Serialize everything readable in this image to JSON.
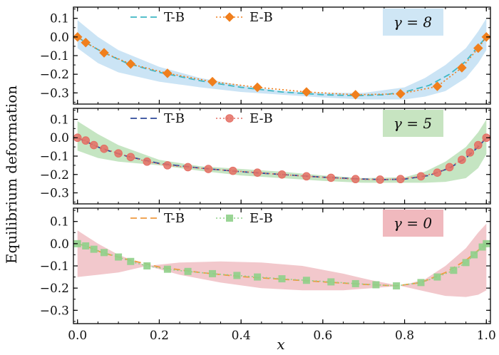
{
  "chart_data": [
    {
      "type": "line",
      "annotation": "γ = 8",
      "badge_color": "#cfe6f5",
      "band_color": "#a9d2ef",
      "tb_color": "#3fb7c4",
      "eb_color": "#f07f1d",
      "eb_marker": "diamond",
      "legend": [
        "T-B",
        "E-B"
      ],
      "ylabel": "",
      "ylim": [
        -0.36,
        0.16
      ],
      "yticks": [
        0.1,
        0.0,
        -0.1,
        -0.2,
        -0.3
      ],
      "ytick_labels": [
        "0.1",
        "0.0",
        "−0.1",
        "−0.2",
        "−0.3"
      ],
      "tb": {
        "x": [
          0,
          0.02,
          0.06,
          0.12,
          0.2,
          0.3,
          0.4,
          0.5,
          0.6,
          0.68,
          0.75,
          0.8,
          0.86,
          0.91,
          0.95,
          0.98,
          1.0
        ],
        "y": [
          0.0,
          -0.03,
          -0.08,
          -0.14,
          -0.19,
          -0.235,
          -0.27,
          -0.295,
          -0.31,
          -0.315,
          -0.31,
          -0.295,
          -0.26,
          -0.2,
          -0.13,
          -0.05,
          0.0
        ]
      },
      "eb_markers": {
        "x": [
          0.0,
          0.02,
          0.065,
          0.13,
          0.22,
          0.33,
          0.44,
          0.56,
          0.68,
          0.79,
          0.88,
          0.94,
          0.98,
          1.0
        ],
        "y": [
          0.0,
          -0.03,
          -0.085,
          -0.145,
          -0.195,
          -0.24,
          -0.27,
          -0.295,
          -0.31,
          -0.305,
          -0.265,
          -0.165,
          -0.06,
          0.0
        ]
      },
      "band": {
        "x": [
          0,
          0.05,
          0.1,
          0.2,
          0.3,
          0.4,
          0.5,
          0.6,
          0.7,
          0.8,
          0.85,
          0.9,
          0.95,
          0.98,
          1.0
        ],
        "upper": [
          0.09,
          0.0,
          -0.07,
          -0.16,
          -0.22,
          -0.26,
          -0.29,
          -0.3,
          -0.3,
          -0.27,
          -0.22,
          -0.15,
          -0.06,
          0.03,
          0.1
        ],
        "lower": [
          -0.06,
          -0.14,
          -0.19,
          -0.24,
          -0.27,
          -0.295,
          -0.31,
          -0.325,
          -0.335,
          -0.335,
          -0.32,
          -0.29,
          -0.22,
          -0.14,
          -0.07
        ]
      }
    },
    {
      "type": "line",
      "annotation": "γ = 5",
      "badge_color": "#c7e4c1",
      "band_color": "#9fd39a",
      "tb_color": "#2f4a9a",
      "eb_color": "#e46f64",
      "eb_marker": "circle",
      "legend": [
        "T-B",
        "E-B"
      ],
      "ylabel": "",
      "ylim": [
        -0.36,
        0.16
      ],
      "yticks": [
        0.1,
        0.0,
        -0.1,
        -0.2,
        -0.3
      ],
      "ytick_labels": [
        "0.1",
        "0.0",
        "−0.1",
        "−0.2",
        "−0.3"
      ],
      "tb": {
        "x": [
          0,
          0.02,
          0.06,
          0.12,
          0.2,
          0.3,
          0.4,
          0.5,
          0.6,
          0.7,
          0.75,
          0.8,
          0.86,
          0.91,
          0.95,
          0.98,
          1.0
        ],
        "y": [
          0.0,
          -0.02,
          -0.06,
          -0.1,
          -0.14,
          -0.165,
          -0.185,
          -0.2,
          -0.215,
          -0.225,
          -0.228,
          -0.225,
          -0.205,
          -0.165,
          -0.11,
          -0.05,
          0.0
        ]
      },
      "eb_markers": {
        "x": [
          0.0,
          0.02,
          0.04,
          0.065,
          0.1,
          0.13,
          0.17,
          0.22,
          0.27,
          0.32,
          0.38,
          0.44,
          0.5,
          0.56,
          0.62,
          0.68,
          0.74,
          0.79,
          0.84,
          0.88,
          0.91,
          0.94,
          0.96,
          0.98,
          1.0
        ],
        "y": [
          0.0,
          -0.015,
          -0.04,
          -0.06,
          -0.085,
          -0.105,
          -0.13,
          -0.15,
          -0.16,
          -0.17,
          -0.18,
          -0.19,
          -0.2,
          -0.21,
          -0.218,
          -0.225,
          -0.228,
          -0.225,
          -0.21,
          -0.19,
          -0.16,
          -0.12,
          -0.08,
          -0.04,
          0.0
        ]
      },
      "band": {
        "x": [
          0,
          0.05,
          0.1,
          0.2,
          0.3,
          0.4,
          0.5,
          0.6,
          0.7,
          0.8,
          0.85,
          0.9,
          0.95,
          0.98,
          1.0
        ],
        "upper": [
          0.09,
          0.02,
          -0.04,
          -0.12,
          -0.155,
          -0.17,
          -0.185,
          -0.205,
          -0.22,
          -0.215,
          -0.185,
          -0.13,
          -0.05,
          0.03,
          0.1
        ],
        "lower": [
          -0.07,
          -0.11,
          -0.13,
          -0.15,
          -0.18,
          -0.205,
          -0.22,
          -0.235,
          -0.245,
          -0.245,
          -0.245,
          -0.24,
          -0.22,
          -0.165,
          -0.09
        ]
      }
    },
    {
      "type": "line",
      "annotation": "γ = 0",
      "badge_color": "#f0b9be",
      "band_color": "#eaa3aa",
      "tb_color": "#ee9a3f",
      "eb_color": "#8fd08a",
      "eb_marker": "square",
      "legend": [
        "T-B",
        "E-B"
      ],
      "ylabel": "",
      "ylim": [
        -0.36,
        0.16
      ],
      "yticks": [
        0.1,
        0.0,
        -0.1,
        -0.2,
        -0.3
      ],
      "ytick_labels": [
        "0.1",
        "0.0",
        "−0.1",
        "−0.2",
        "−0.3"
      ],
      "tb": {
        "x": [
          0,
          0.02,
          0.06,
          0.12,
          0.2,
          0.3,
          0.4,
          0.5,
          0.6,
          0.7,
          0.78,
          0.84,
          0.9,
          0.95,
          0.98,
          1.0
        ],
        "y": [
          0.0,
          -0.01,
          -0.04,
          -0.07,
          -0.105,
          -0.13,
          -0.148,
          -0.16,
          -0.172,
          -0.183,
          -0.19,
          -0.175,
          -0.13,
          -0.075,
          -0.03,
          0.0
        ]
      },
      "eb_markers": {
        "x": [
          0.0,
          0.02,
          0.04,
          0.065,
          0.1,
          0.13,
          0.17,
          0.22,
          0.27,
          0.33,
          0.39,
          0.44,
          0.5,
          0.56,
          0.62,
          0.68,
          0.73,
          0.78,
          0.84,
          0.88,
          0.92,
          0.95,
          0.97,
          0.99,
          1.0
        ],
        "y": [
          0.0,
          -0.01,
          -0.025,
          -0.04,
          -0.06,
          -0.08,
          -0.1,
          -0.115,
          -0.125,
          -0.135,
          -0.143,
          -0.15,
          -0.158,
          -0.165,
          -0.172,
          -0.18,
          -0.185,
          -0.19,
          -0.175,
          -0.15,
          -0.12,
          -0.085,
          -0.05,
          -0.015,
          0.0
        ]
      },
      "band": {
        "x": [
          0,
          0.05,
          0.1,
          0.17,
          0.25,
          0.35,
          0.45,
          0.55,
          0.65,
          0.72,
          0.79,
          0.85,
          0.9,
          0.95,
          0.98,
          1.0
        ],
        "upper": [
          0.06,
          0.0,
          -0.05,
          -0.1,
          -0.085,
          -0.08,
          -0.085,
          -0.1,
          -0.135,
          -0.165,
          -0.19,
          -0.16,
          -0.1,
          -0.02,
          0.05,
          0.09
        ],
        "lower": [
          -0.15,
          -0.14,
          -0.13,
          -0.1,
          -0.14,
          -0.175,
          -0.2,
          -0.21,
          -0.21,
          -0.2,
          -0.19,
          -0.215,
          -0.235,
          -0.24,
          -0.23,
          -0.21
        ]
      }
    }
  ],
  "shared": {
    "xlabel": "x",
    "ylabel": "Equilibrium deformation",
    "xlim": [
      -0.01,
      1.01
    ],
    "xticks": [
      0.0,
      0.2,
      0.4,
      0.6,
      0.8,
      1.0
    ],
    "xtick_labels": [
      "0.0",
      "0.2",
      "0.4",
      "0.6",
      "0.8",
      "1.0"
    ]
  }
}
